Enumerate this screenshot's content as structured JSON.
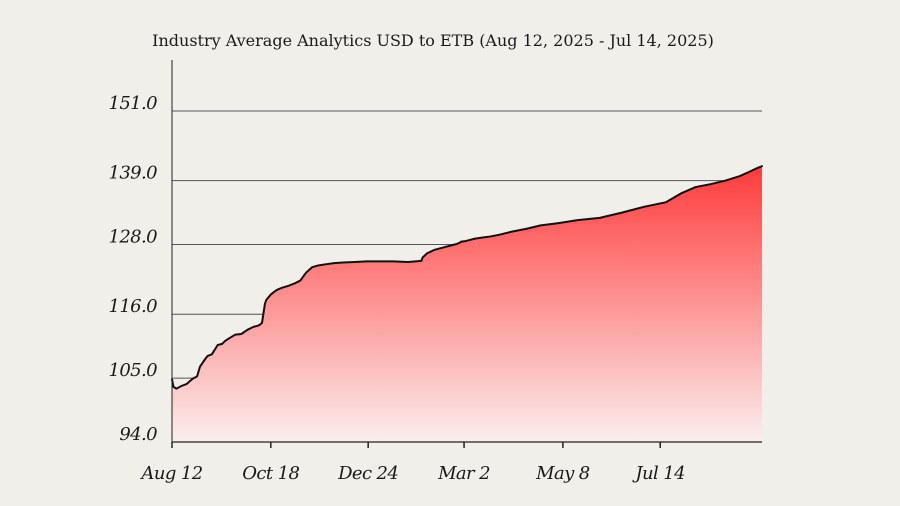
{
  "chart_data": {
    "type": "area",
    "title": "Industry Average Analytics  USD to ETB (Aug 12, 2025 - Jul 14, 2025)",
    "xlabel": "",
    "ylabel": "",
    "x_ticks": [
      "Aug 12",
      "Oct 18",
      "Dec 24",
      "Mar 2",
      "May 8",
      "Jul 14"
    ],
    "y_ticks": [
      "94.0",
      "105.0",
      "116.0",
      "128.0",
      "139.0",
      "151.0"
    ],
    "y_tick_values": [
      94.0,
      105.0,
      116.0,
      128.0,
      139.0,
      151.0
    ],
    "ylim": [
      94.0,
      160.0
    ],
    "x_range_days": [
      0,
      400
    ],
    "x_tick_days": [
      0,
      67,
      133,
      198,
      265,
      331
    ],
    "grid": true,
    "line_color": "#111111",
    "fill_top_color": "#ff3b3b",
    "fill_bottom_color": "#fbeeee",
    "series": [
      {
        "x": [
          0,
          1,
          3,
          6,
          10,
          14,
          17,
          19,
          22,
          24,
          27,
          31,
          34,
          36,
          39,
          43,
          47,
          51,
          55,
          59,
          61,
          63,
          64,
          65,
          66,
          67,
          68,
          70,
          72,
          75,
          79,
          83,
          87,
          91,
          95,
          99,
          104,
          110,
          116,
          124,
          132,
          140,
          150,
          160,
          169,
          170,
          173,
          178,
          184,
          190,
          193,
          195,
          196,
          199,
          202,
          205,
          210,
          216,
          222,
          230,
          240,
          250,
          262,
          275,
          290,
          305,
          320,
          335,
          345,
          355,
          365,
          375,
          385,
          392,
          397,
          400
        ],
        "y": [
          104.8,
          103.5,
          103.2,
          103.6,
          104.0,
          104.9,
          105.3,
          107.0,
          108.1,
          108.8,
          109.1,
          110.7,
          110.9,
          111.4,
          111.9,
          112.5,
          112.6,
          113.3,
          113.8,
          114.1,
          114.5,
          117.8,
          118.5,
          118.8,
          119.1,
          119.4,
          119.6,
          120.0,
          120.3,
          120.6,
          120.9,
          121.3,
          121.8,
          123.2,
          124.1,
          124.4,
          124.6,
          124.8,
          124.9,
          125.0,
          125.1,
          125.1,
          125.1,
          125.0,
          125.2,
          125.8,
          126.5,
          127.1,
          127.5,
          127.9,
          128.1,
          128.3,
          128.5,
          128.6,
          128.8,
          129.0,
          129.2,
          129.4,
          129.7,
          130.2,
          130.7,
          131.3,
          131.7,
          132.2,
          132.6,
          133.5,
          134.5,
          135.3,
          136.8,
          137.9,
          138.4,
          139.0,
          139.8,
          140.6,
          141.2,
          141.5
        ]
      }
    ]
  }
}
